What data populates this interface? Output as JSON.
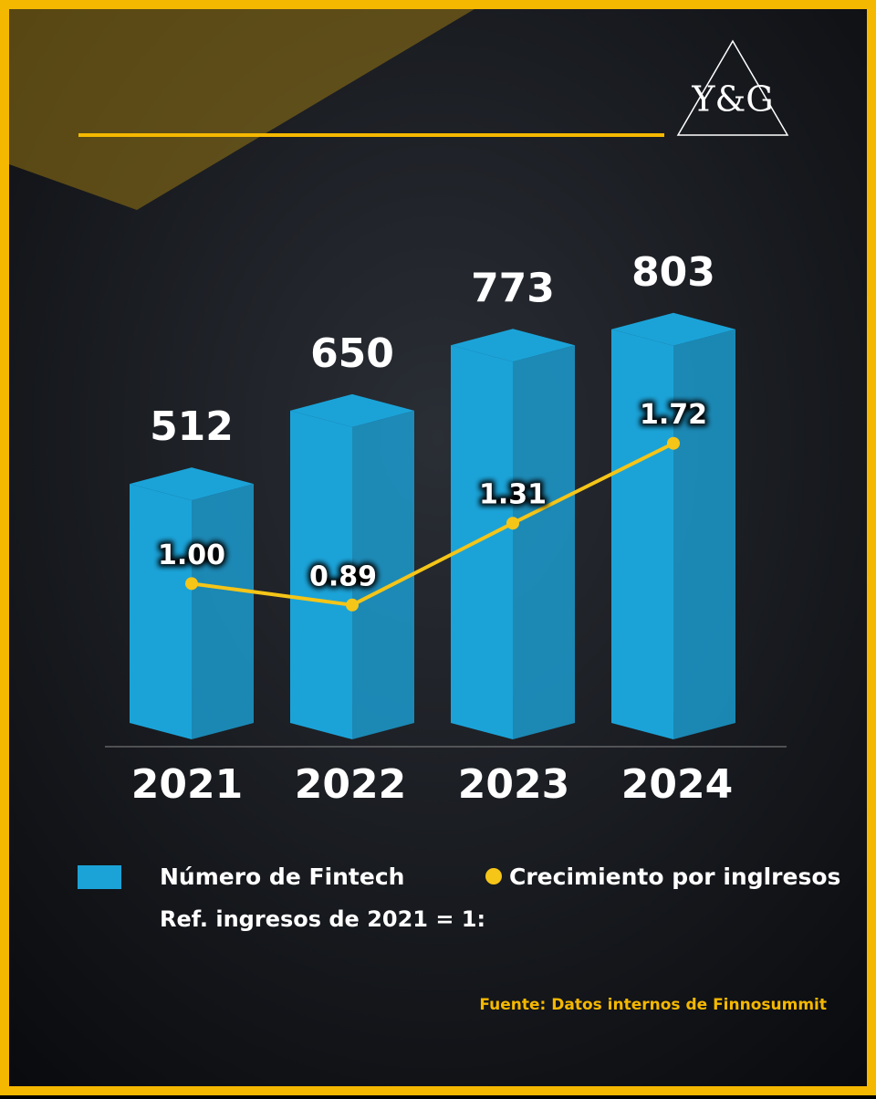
{
  "logo": "Y&G",
  "chart_data": {
    "type": "bar",
    "categories": [
      "2021",
      "2022",
      "2023",
      "2024"
    ],
    "series": [
      {
        "name": "Número de Fintech",
        "type": "bar",
        "color": "#1ba3d8",
        "values": [
          512,
          650,
          773,
          803
        ]
      },
      {
        "name": "Crecimiento por inglresos",
        "type": "line",
        "axis": "y2",
        "color": "#f5c518",
        "values": [
          1.0,
          0.89,
          1.31,
          1.72
        ],
        "value_labels": [
          "1.00",
          "0.89",
          "1.31",
          "1.72"
        ]
      }
    ],
    "ylim": [
      0,
      1100
    ],
    "y2lim": [
      0.2,
      3.2
    ],
    "note": "Ref. ingresos de 2021 = 1:",
    "source": "Fuente: Datos internos de Finnosummit"
  }
}
